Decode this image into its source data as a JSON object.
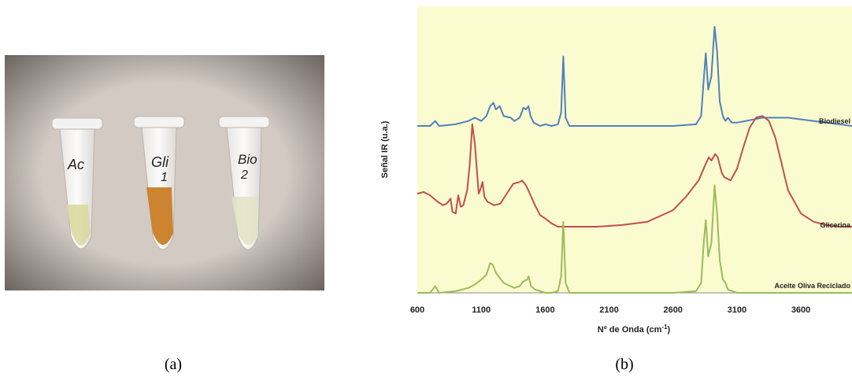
{
  "figure": {
    "panel_a_caption": "(a)",
    "panel_b_caption": "(b)"
  },
  "photo": {
    "tube_labels": [
      {
        "line1": "Ac",
        "line2": ""
      },
      {
        "line1": "Gli",
        "line2": "1"
      },
      {
        "line1": "Bio",
        "line2": "2"
      }
    ],
    "colors": {
      "background": "#c8bfb8",
      "liquid_ac": "#d9d79a",
      "liquid_gli": "#c9781c",
      "liquid_bio": "#e4e2c4"
    }
  },
  "chart_data": {
    "type": "line",
    "title": "",
    "xlabel": "Nº de Onda (cm",
    "xlabel_superscript": "-1",
    "xlabel_suffix": ")",
    "ylabel": "Señal IR (u.a.)",
    "xlim": [
      600,
      4000
    ],
    "xticks": [
      "600",
      "1100",
      "1600",
      "2100",
      "2600",
      "3100",
      "3600"
    ],
    "background_color": "#fbfbd0",
    "grid": false,
    "series": [
      {
        "name": "Biodiesel",
        "color": "#4f81bd",
        "points": [
          [
            600,
            0.0
          ],
          [
            700,
            0.0
          ],
          [
            740,
            0.03
          ],
          [
            770,
            0.0
          ],
          [
            900,
            0.01
          ],
          [
            1000,
            0.03
          ],
          [
            1050,
            0.05
          ],
          [
            1100,
            0.03
          ],
          [
            1140,
            0.06
          ],
          [
            1170,
            0.12
          ],
          [
            1195,
            0.14
          ],
          [
            1215,
            0.1
          ],
          [
            1245,
            0.12
          ],
          [
            1275,
            0.06
          ],
          [
            1330,
            0.05
          ],
          [
            1360,
            0.03
          ],
          [
            1400,
            0.05
          ],
          [
            1430,
            0.11
          ],
          [
            1450,
            0.1
          ],
          [
            1470,
            0.12
          ],
          [
            1485,
            0.06
          ],
          [
            1510,
            0.02
          ],
          [
            1560,
            0.0
          ],
          [
            1600,
            0.01
          ],
          [
            1650,
            0.0
          ],
          [
            1700,
            0.01
          ],
          [
            1725,
            0.08
          ],
          [
            1742,
            0.42
          ],
          [
            1760,
            0.05
          ],
          [
            1790,
            0.0
          ],
          [
            2000,
            0.0
          ],
          [
            2300,
            0.0
          ],
          [
            2600,
            0.0
          ],
          [
            2780,
            0.01
          ],
          [
            2820,
            0.06
          ],
          [
            2840,
            0.28
          ],
          [
            2856,
            0.44
          ],
          [
            2875,
            0.22
          ],
          [
            2900,
            0.3
          ],
          [
            2925,
            0.6
          ],
          [
            2945,
            0.45
          ],
          [
            2965,
            0.15
          ],
          [
            2990,
            0.06
          ],
          [
            3010,
            0.03
          ],
          [
            3030,
            0.05
          ],
          [
            3060,
            0.02
          ],
          [
            3100,
            0.02
          ],
          [
            3300,
            0.05
          ],
          [
            3500,
            0.05
          ],
          [
            3700,
            0.03
          ],
          [
            3900,
            0.01
          ],
          [
            4000,
            0.0
          ]
        ]
      },
      {
        "name": "Glicerina",
        "color": "#c0504d",
        "points": [
          [
            600,
            0.2
          ],
          [
            650,
            0.21
          ],
          [
            700,
            0.19
          ],
          [
            760,
            0.15
          ],
          [
            800,
            0.13
          ],
          [
            830,
            0.14
          ],
          [
            860,
            0.17
          ],
          [
            875,
            0.09
          ],
          [
            900,
            0.08
          ],
          [
            920,
            0.19
          ],
          [
            940,
            0.12
          ],
          [
            960,
            0.13
          ],
          [
            990,
            0.22
          ],
          [
            1010,
            0.38
          ],
          [
            1030,
            0.62
          ],
          [
            1050,
            0.5
          ],
          [
            1080,
            0.2
          ],
          [
            1095,
            0.23
          ],
          [
            1110,
            0.27
          ],
          [
            1125,
            0.18
          ],
          [
            1150,
            0.15
          ],
          [
            1200,
            0.13
          ],
          [
            1250,
            0.14
          ],
          [
            1300,
            0.2
          ],
          [
            1350,
            0.26
          ],
          [
            1400,
            0.27
          ],
          [
            1420,
            0.28
          ],
          [
            1450,
            0.25
          ],
          [
            1480,
            0.2
          ],
          [
            1520,
            0.13
          ],
          [
            1560,
            0.07
          ],
          [
            1600,
            0.05
          ],
          [
            1650,
            0.02
          ],
          [
            1700,
            0.0
          ],
          [
            1800,
            0.0
          ],
          [
            2000,
            0.0
          ],
          [
            2200,
            0.01
          ],
          [
            2400,
            0.03
          ],
          [
            2600,
            0.1
          ],
          [
            2700,
            0.18
          ],
          [
            2800,
            0.28
          ],
          [
            2850,
            0.37
          ],
          [
            2880,
            0.42
          ],
          [
            2900,
            0.4
          ],
          [
            2930,
            0.44
          ],
          [
            2950,
            0.42
          ],
          [
            2980,
            0.33
          ],
          [
            3000,
            0.3
          ],
          [
            3050,
            0.28
          ],
          [
            3100,
            0.35
          ],
          [
            3150,
            0.48
          ],
          [
            3200,
            0.6
          ],
          [
            3250,
            0.66
          ],
          [
            3300,
            0.67
          ],
          [
            3350,
            0.64
          ],
          [
            3400,
            0.54
          ],
          [
            3450,
            0.38
          ],
          [
            3500,
            0.22
          ],
          [
            3600,
            0.08
          ],
          [
            3700,
            0.03
          ],
          [
            3800,
            0.01
          ],
          [
            3900,
            0.0
          ],
          [
            4000,
            0.0
          ]
        ]
      },
      {
        "name": "Aceite Oliva Reciclado",
        "color": "#9bbb59",
        "points": [
          [
            600,
            0.0
          ],
          [
            700,
            0.0
          ],
          [
            740,
            0.04
          ],
          [
            770,
            0.0
          ],
          [
            900,
            0.01
          ],
          [
            1000,
            0.03
          ],
          [
            1050,
            0.05
          ],
          [
            1100,
            0.08
          ],
          [
            1140,
            0.11
          ],
          [
            1170,
            0.18
          ],
          [
            1190,
            0.17
          ],
          [
            1215,
            0.12
          ],
          [
            1245,
            0.09
          ],
          [
            1275,
            0.06
          ],
          [
            1330,
            0.04
          ],
          [
            1360,
            0.03
          ],
          [
            1400,
            0.04
          ],
          [
            1430,
            0.07
          ],
          [
            1460,
            0.08
          ],
          [
            1470,
            0.1
          ],
          [
            1490,
            0.04
          ],
          [
            1520,
            0.02
          ],
          [
            1600,
            0.0
          ],
          [
            1650,
            0.0
          ],
          [
            1700,
            0.01
          ],
          [
            1725,
            0.1
          ],
          [
            1742,
            0.43
          ],
          [
            1760,
            0.06
          ],
          [
            1790,
            0.0
          ],
          [
            2000,
            0.0
          ],
          [
            2300,
            0.0
          ],
          [
            2600,
            0.0
          ],
          [
            2780,
            0.01
          ],
          [
            2820,
            0.06
          ],
          [
            2840,
            0.3
          ],
          [
            2856,
            0.44
          ],
          [
            2875,
            0.22
          ],
          [
            2900,
            0.3
          ],
          [
            2925,
            0.65
          ],
          [
            2945,
            0.48
          ],
          [
            2965,
            0.2
          ],
          [
            2990,
            0.08
          ],
          [
            3010,
            0.06
          ],
          [
            3030,
            0.02
          ],
          [
            3100,
            0.0
          ],
          [
            3300,
            0.0
          ],
          [
            3500,
            0.0
          ],
          [
            3700,
            0.0
          ],
          [
            4000,
            0.0
          ]
        ]
      }
    ]
  }
}
